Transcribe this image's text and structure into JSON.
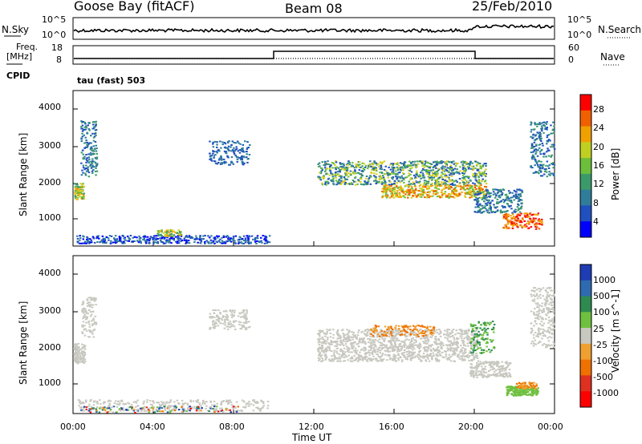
{
  "header": {
    "station": "Goose Bay (fitACF)",
    "beam": "Beam 08",
    "date": "25/Feb/2010"
  },
  "top_panels": {
    "nsky_label": "N.Sky",
    "nsky_ticks": [
      "10^5",
      "10^0"
    ],
    "nsearch_label": "N.Search",
    "freq_label": "Freq.",
    "freq_unit": "[MHz]",
    "freq_ticks": [
      "18",
      "8"
    ],
    "nave_label": "Nave",
    "nave_ticks": [
      "60",
      "0"
    ],
    "cpid_label": "CPID",
    "cpid_value": "tau (fast) 503"
  },
  "chart_data": [
    {
      "type": "heatmap",
      "name": "power",
      "ylabel": "Slant Range [km]",
      "yticks": [
        "4000",
        "3000",
        "2000",
        "1000"
      ],
      "colorbar_label": "Power [dB]",
      "colorbar_ticks": [
        "28",
        "24",
        "20",
        "16",
        "12",
        "8",
        "4"
      ],
      "colors": [
        "#0000ff",
        "#2050c0",
        "#2f7d9a",
        "#3a9a6a",
        "#6cbf3a",
        "#d8d020",
        "#f0a000",
        "#f06000",
        "#ff0000"
      ]
    },
    {
      "type": "heatmap",
      "name": "velocity",
      "ylabel": "Slant Range [km]",
      "yticks": [
        "4000",
        "3000",
        "2000",
        "1000"
      ],
      "colorbar_label": "Velocity [m s^-1]",
      "colorbar_ticks": [
        "1000",
        "500",
        "100",
        "25",
        "-25",
        "-100",
        "-500",
        "-1000"
      ],
      "colors": [
        "#1e3cb4",
        "#2e6ab0",
        "#2e8a50",
        "#70c040",
        "#c8c8c0",
        "#f0a030",
        "#f07000",
        "#e03020",
        "#ff0000"
      ]
    }
  ],
  "xaxis": {
    "label": "Time UT",
    "ticks": [
      "00:00",
      "04:00",
      "08:00",
      "12:00",
      "16:00",
      "20:00",
      "00:00"
    ]
  }
}
